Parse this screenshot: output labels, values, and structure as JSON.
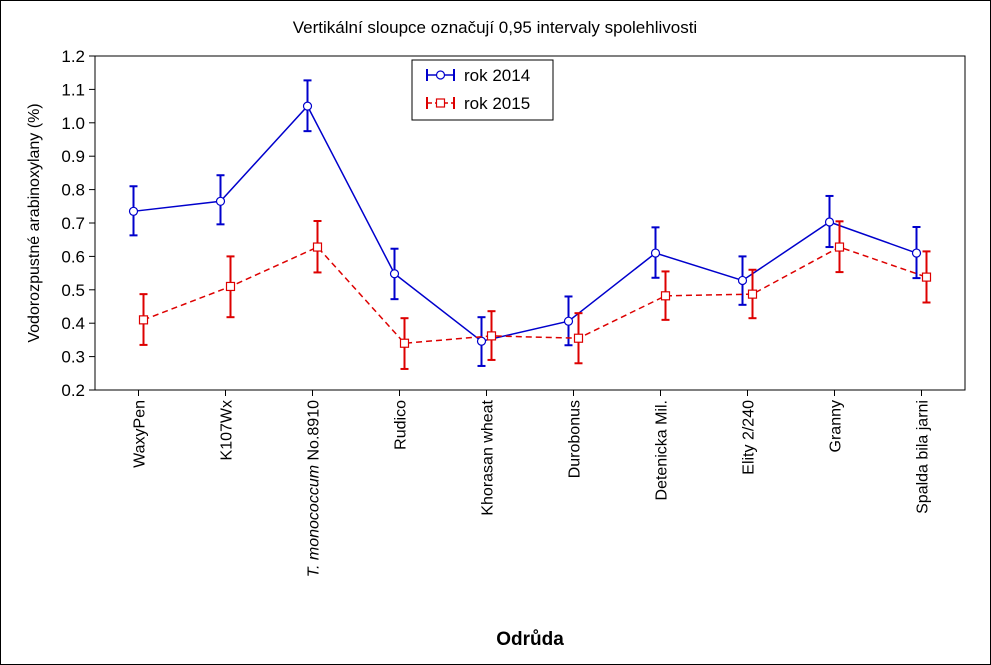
{
  "chart_data": {
    "type": "line",
    "title": "Vertikální sloupce označují 0,95 intervaly spolehlivosti",
    "xlabel": "Odrůda",
    "ylabel": "Vodorozpustné arabinoxylany (%)",
    "ylim": [
      0.2,
      1.2
    ],
    "yticks": [
      "0.2",
      "0.3",
      "0.4",
      "0.5",
      "0.6",
      "0.7",
      "0.8",
      "0.9",
      "1.0",
      "1.1",
      "1.2"
    ],
    "categories": [
      {
        "label": "WaxyPen"
      },
      {
        "label": "K107Wx"
      },
      {
        "label_italic": "T. monococcum",
        "label_rest": " No.8910"
      },
      {
        "label": "Rudico"
      },
      {
        "label": "Khorasan wheat"
      },
      {
        "label": "Durobonus"
      },
      {
        "label": "Detenicka Mil."
      },
      {
        "label": "Elity 2/240"
      },
      {
        "label": "Granny"
      },
      {
        "label": "Spalda bila jarni"
      }
    ],
    "legend_position": "top-center",
    "grid": false,
    "series": [
      {
        "name": "rok 2014",
        "color": "#0000cc",
        "marker": "circle",
        "line_style": "solid",
        "values": [
          0.735,
          0.765,
          1.05,
          0.548,
          0.346,
          0.406,
          0.61,
          0.528,
          0.703,
          0.61
        ],
        "ci_low": [
          0.663,
          0.696,
          0.975,
          0.472,
          0.272,
          0.334,
          0.536,
          0.455,
          0.628,
          0.535
        ],
        "ci_high": [
          0.81,
          0.843,
          1.127,
          0.623,
          0.418,
          0.48,
          0.687,
          0.6,
          0.781,
          0.688
        ]
      },
      {
        "name": "rok 2015",
        "color": "#dd0000",
        "marker": "square",
        "line_style": "dashed",
        "values": [
          0.41,
          0.51,
          0.628,
          0.34,
          0.362,
          0.355,
          0.482,
          0.487,
          0.628,
          0.538
        ],
        "ci_low": [
          0.335,
          0.418,
          0.552,
          0.263,
          0.29,
          0.28,
          0.41,
          0.415,
          0.553,
          0.462
        ],
        "ci_high": [
          0.487,
          0.6,
          0.706,
          0.415,
          0.436,
          0.43,
          0.555,
          0.56,
          0.705,
          0.615
        ]
      }
    ]
  }
}
